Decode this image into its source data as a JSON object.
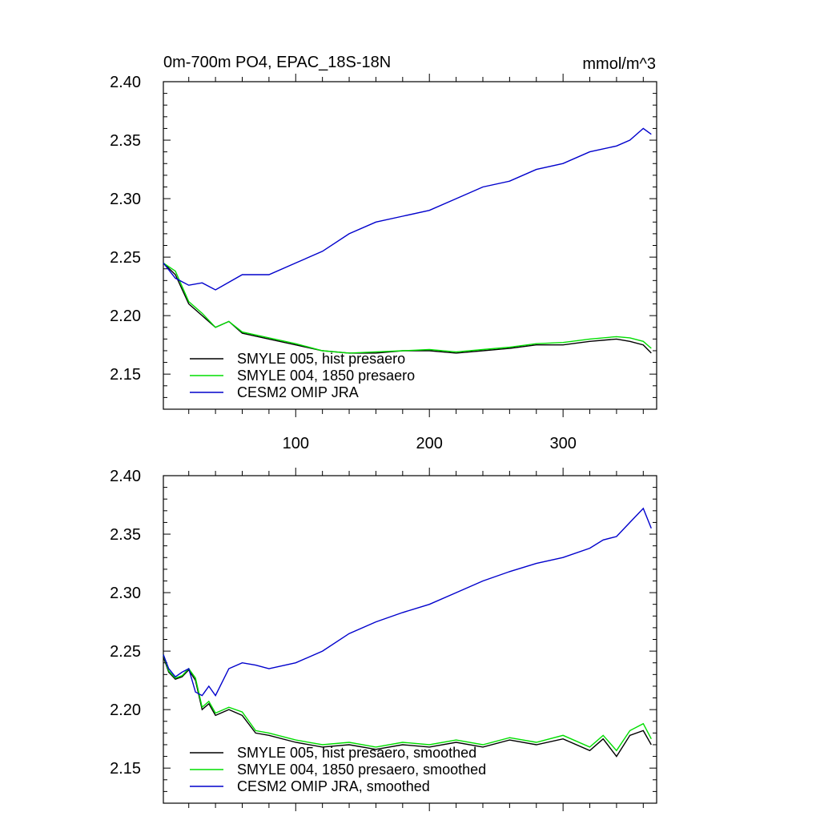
{
  "figure": {
    "title_left": "0m-700m PO4, EPAC_18S-18N",
    "title_right": "mmol/m^3"
  },
  "chart_data": [
    {
      "type": "line",
      "panel": "top",
      "xlim": [
        1,
        370
      ],
      "ylim": [
        2.12,
        2.4
      ],
      "x_ticks": [
        100,
        200,
        300
      ],
      "x_tick_labels": [
        "100",
        "200",
        "300"
      ],
      "y_ticks": [
        2.15,
        2.2,
        2.25,
        2.3,
        2.35,
        2.4
      ],
      "y_tick_labels": [
        "2.15",
        "2.20",
        "2.25",
        "2.30",
        "2.35",
        "2.40"
      ],
      "legend_position": "bottom-left",
      "grid": false,
      "series": [
        {
          "name": "SMYLE 005, hist presaero",
          "color": "#000000",
          "x": [
            1,
            10,
            20,
            30,
            40,
            50,
            60,
            80,
            100,
            120,
            140,
            160,
            180,
            200,
            220,
            240,
            260,
            280,
            300,
            320,
            340,
            350,
            360,
            366
          ],
          "values": [
            2.245,
            2.235,
            2.21,
            2.2,
            2.19,
            2.195,
            2.185,
            2.18,
            2.175,
            2.17,
            2.168,
            2.168,
            2.17,
            2.17,
            2.168,
            2.17,
            2.172,
            2.175,
            2.175,
            2.178,
            2.18,
            2.178,
            2.175,
            2.168
          ]
        },
        {
          "name": "SMYLE 004, 1850 presaero",
          "color": "#00dd00",
          "x": [
            1,
            10,
            20,
            30,
            40,
            50,
            60,
            80,
            100,
            120,
            140,
            160,
            180,
            200,
            220,
            240,
            260,
            280,
            300,
            320,
            340,
            350,
            360,
            366
          ],
          "values": [
            2.245,
            2.238,
            2.212,
            2.202,
            2.19,
            2.195,
            2.186,
            2.181,
            2.176,
            2.17,
            2.168,
            2.169,
            2.17,
            2.171,
            2.169,
            2.171,
            2.173,
            2.176,
            2.177,
            2.18,
            2.182,
            2.181,
            2.178,
            2.172
          ]
        },
        {
          "name": "CESM2 OMIP JRA",
          "color": "#0000cc",
          "x": [
            1,
            10,
            20,
            30,
            40,
            60,
            80,
            100,
            120,
            140,
            160,
            180,
            200,
            220,
            240,
            260,
            280,
            300,
            320,
            340,
            350,
            360,
            366
          ],
          "values": [
            2.245,
            2.232,
            2.226,
            2.228,
            2.222,
            2.235,
            2.235,
            2.245,
            2.255,
            2.27,
            2.28,
            2.285,
            2.29,
            2.3,
            2.31,
            2.315,
            2.325,
            2.33,
            2.34,
            2.345,
            2.35,
            2.36,
            2.355
          ]
        }
      ]
    },
    {
      "type": "line",
      "panel": "bottom",
      "xlim": [
        1,
        370
      ],
      "ylim": [
        2.12,
        2.4
      ],
      "x_ticks": [
        100,
        200,
        300
      ],
      "x_tick_labels": [],
      "y_ticks": [
        2.15,
        2.2,
        2.25,
        2.3,
        2.35,
        2.4
      ],
      "y_tick_labels": [
        "2.15",
        "2.20",
        "2.25",
        "2.30",
        "2.35",
        "2.40"
      ],
      "legend_position": "bottom-left",
      "grid": false,
      "series": [
        {
          "name": "SMYLE 005, hist presaero, smoothed",
          "color": "#000000",
          "x": [
            1,
            5,
            10,
            15,
            20,
            25,
            30,
            35,
            40,
            50,
            60,
            70,
            80,
            100,
            120,
            140,
            160,
            180,
            200,
            220,
            240,
            260,
            280,
            300,
            320,
            330,
            340,
            350,
            360,
            366
          ],
          "values": [
            2.245,
            2.232,
            2.226,
            2.228,
            2.234,
            2.225,
            2.2,
            2.205,
            2.195,
            2.2,
            2.195,
            2.18,
            2.178,
            2.172,
            2.168,
            2.17,
            2.166,
            2.17,
            2.168,
            2.172,
            2.168,
            2.174,
            2.17,
            2.175,
            2.165,
            2.175,
            2.16,
            2.178,
            2.182,
            2.17
          ]
        },
        {
          "name": "SMYLE 004, 1850 presaero, smoothed",
          "color": "#00dd00",
          "x": [
            1,
            5,
            10,
            15,
            20,
            25,
            30,
            35,
            40,
            50,
            60,
            70,
            80,
            100,
            120,
            140,
            160,
            180,
            200,
            220,
            240,
            260,
            280,
            300,
            320,
            330,
            340,
            350,
            360,
            366
          ],
          "values": [
            2.247,
            2.233,
            2.227,
            2.229,
            2.235,
            2.227,
            2.202,
            2.207,
            2.197,
            2.202,
            2.198,
            2.182,
            2.18,
            2.174,
            2.17,
            2.172,
            2.168,
            2.172,
            2.17,
            2.174,
            2.17,
            2.176,
            2.172,
            2.178,
            2.168,
            2.178,
            2.165,
            2.182,
            2.188,
            2.175
          ]
        },
        {
          "name": "CESM2 OMIP JRA, smoothed",
          "color": "#0000cc",
          "x": [
            1,
            5,
            10,
            15,
            20,
            25,
            30,
            35,
            40,
            50,
            60,
            70,
            80,
            100,
            120,
            140,
            160,
            180,
            200,
            220,
            240,
            260,
            280,
            300,
            320,
            330,
            340,
            350,
            360,
            366
          ],
          "values": [
            2.247,
            2.235,
            2.228,
            2.232,
            2.235,
            2.215,
            2.212,
            2.22,
            2.212,
            2.235,
            2.24,
            2.238,
            2.235,
            2.24,
            2.25,
            2.265,
            2.275,
            2.283,
            2.29,
            2.3,
            2.31,
            2.318,
            2.325,
            2.33,
            2.338,
            2.345,
            2.348,
            2.36,
            2.372,
            2.355
          ]
        }
      ]
    }
  ]
}
